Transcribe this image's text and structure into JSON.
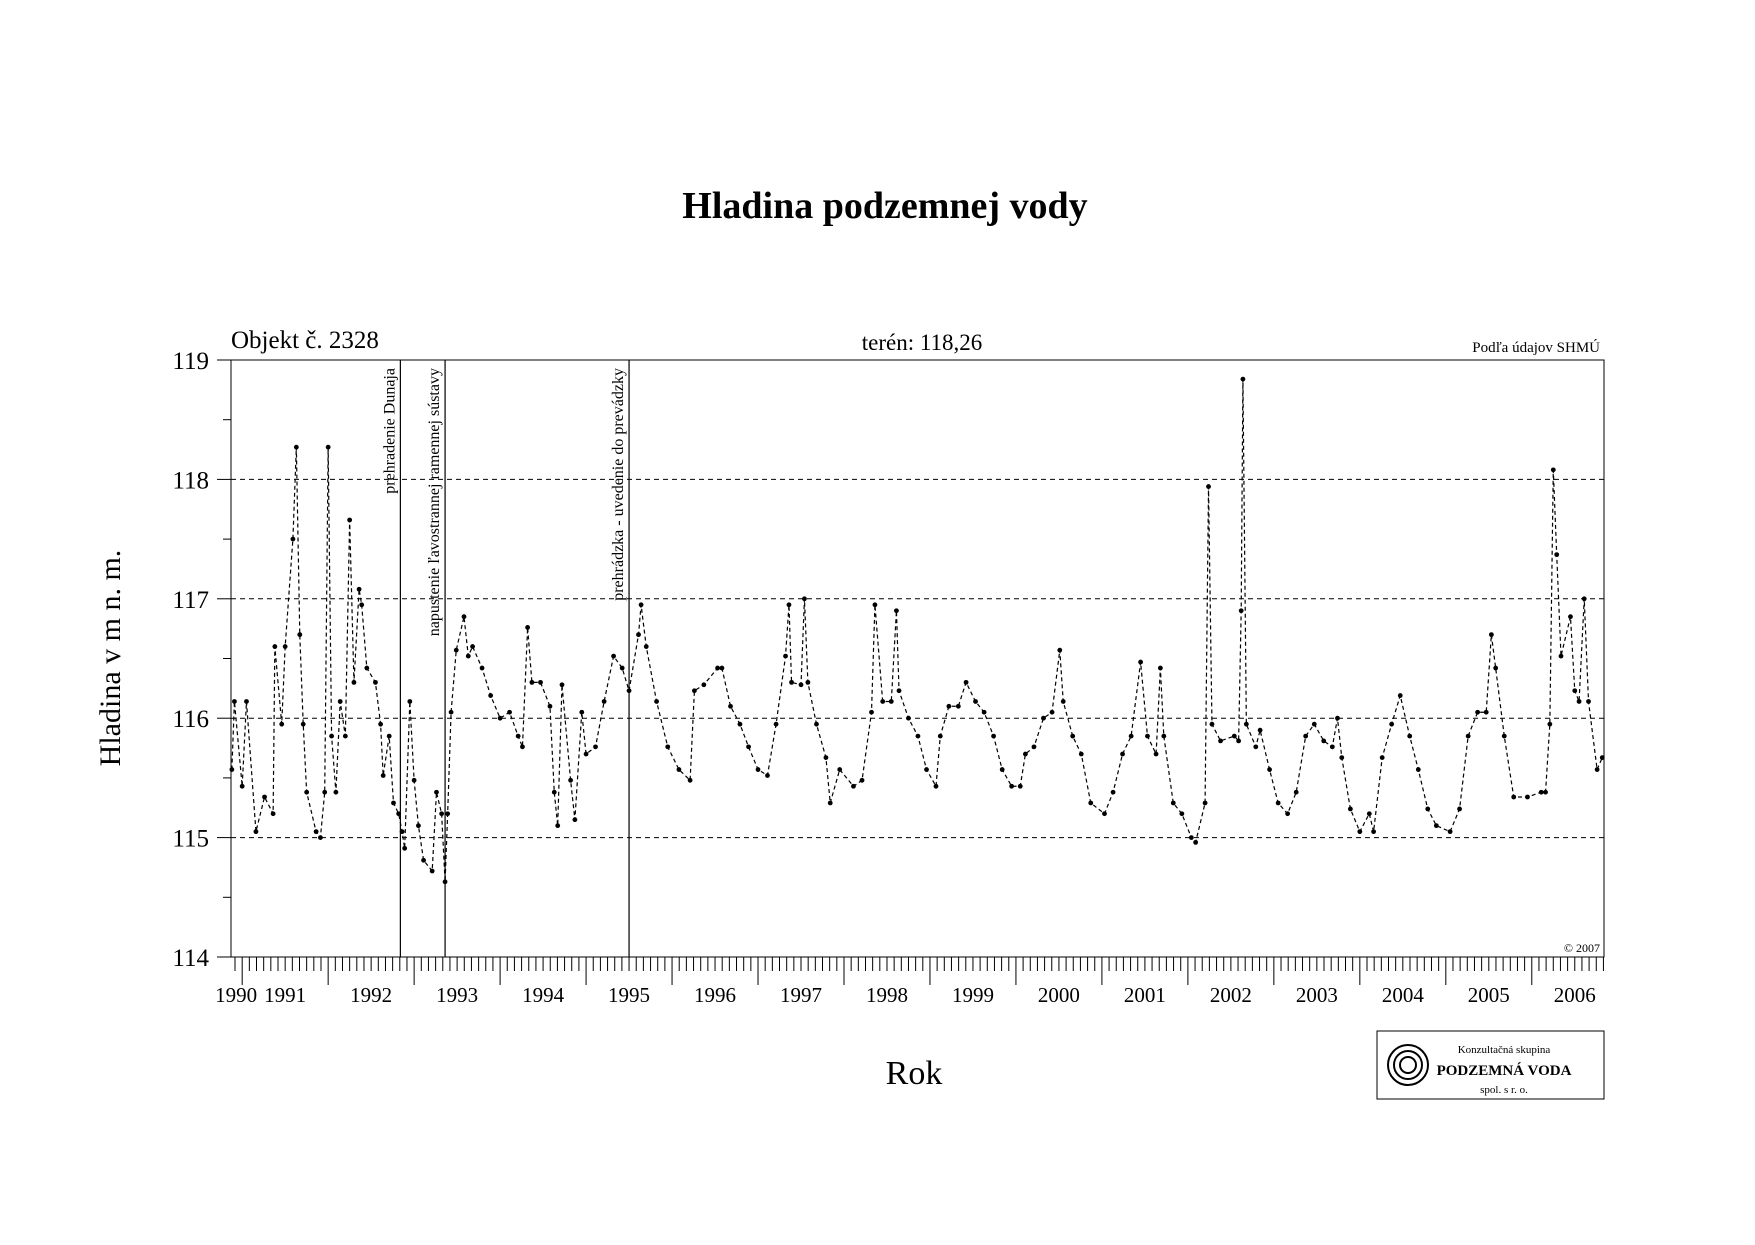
{
  "chart_data": {
    "type": "line",
    "title": "Hladina podzemnej vody",
    "subtitle_left": "Objekt č. 2328",
    "subtitle_center": "terén: 118,26",
    "source": "Podľa údajov SHMÚ",
    "copyright": "© 2007",
    "xlabel": "Rok",
    "ylabel": "Hladina v m n. m.",
    "logo": {
      "line1": "Konzultačná skupina",
      "line2": "PODZEMNÁ VODA",
      "line3": "spol. s r. o."
    },
    "color": "#000000",
    "grid": true,
    "xlim": [
      1990.87,
      2006.84
    ],
    "ylim": [
      114,
      119
    ],
    "yticks": [
      114,
      115,
      116,
      117,
      118,
      119
    ],
    "xticks": [
      {
        "value": 1990.93,
        "label": "1990"
      },
      {
        "value": 1991.5,
        "label": "1991"
      },
      {
        "value": 1992.5,
        "label": "1992"
      },
      {
        "value": 1993.5,
        "label": "1993"
      },
      {
        "value": 1994.5,
        "label": "1994"
      },
      {
        "value": 1995.5,
        "label": "1995"
      },
      {
        "value": 1996.5,
        "label": "1996"
      },
      {
        "value": 1997.5,
        "label": "1997"
      },
      {
        "value": 1998.5,
        "label": "1998"
      },
      {
        "value": 1999.5,
        "label": "1999"
      },
      {
        "value": 2000.5,
        "label": "2000"
      },
      {
        "value": 2001.5,
        "label": "2001"
      },
      {
        "value": 2002.5,
        "label": "2002"
      },
      {
        "value": 2003.5,
        "label": "2003"
      },
      {
        "value": 2004.5,
        "label": "2004"
      },
      {
        "value": 2005.5,
        "label": "2005"
      },
      {
        "value": 2006.5,
        "label": "2006"
      }
    ],
    "events": [
      {
        "x": 1992.84,
        "label": "prehradenie Dunaja"
      },
      {
        "x": 1993.36,
        "label": "napustenie ľavostrannej ramennej sústavy"
      },
      {
        "x": 1995.5,
        "label": "prehrádzka - uvedenie do prevádzky"
      }
    ],
    "x": [
      1990.88,
      1990.91,
      1991.0,
      1991.05,
      1991.16,
      1991.26,
      1991.36,
      1991.38,
      1991.46,
      1991.5,
      1991.59,
      1991.63,
      1991.67,
      1991.71,
      1991.75,
      1991.86,
      1991.91,
      1991.96,
      1992.0,
      1992.04,
      1992.09,
      1992.14,
      1992.2,
      1992.25,
      1992.3,
      1992.36,
      1992.39,
      1992.45,
      1992.55,
      1992.61,
      1992.64,
      1992.71,
      1992.76,
      1992.82,
      1992.86,
      1992.89,
      1992.95,
      1993.0,
      1993.05,
      1993.11,
      1993.21,
      1993.26,
      1993.32,
      1993.36,
      1993.39,
      1993.43,
      1993.49,
      1993.58,
      1993.63,
      1993.68,
      1993.79,
      1993.89,
      1994.0,
      1994.11,
      1994.21,
      1994.26,
      1994.32,
      1994.37,
      1994.47,
      1994.58,
      1994.63,
      1994.67,
      1994.72,
      1994.82,
      1994.87,
      1994.95,
      1995.0,
      1995.11,
      1995.21,
      1995.32,
      1995.42,
      1995.5,
      1995.61,
      1995.64,
      1995.7,
      1995.82,
      1995.95,
      1996.08,
      1996.21,
      1996.26,
      1996.37,
      1996.53,
      1996.58,
      1996.68,
      1996.79,
      1996.89,
      1997.0,
      1997.11,
      1997.21,
      1997.32,
      1997.36,
      1997.39,
      1997.5,
      1997.54,
      1997.58,
      1997.68,
      1997.79,
      1997.84,
      1997.95,
      1998.11,
      1998.21,
      1998.32,
      1998.36,
      1998.45,
      1998.55,
      1998.61,
      1998.64,
      1998.75,
      1998.86,
      1998.96,
      1999.07,
      1999.12,
      1999.22,
      1999.33,
      1999.42,
      1999.53,
      1999.63,
      1999.74,
      1999.84,
      1999.95,
      2000.05,
      2000.11,
      2000.21,
      2000.32,
      2000.42,
      2000.51,
      2000.55,
      2000.66,
      2000.76,
      2000.87,
      2001.03,
      2001.13,
      2001.24,
      2001.34,
      2001.45,
      2001.53,
      2001.63,
      2001.68,
      2001.72,
      2001.83,
      2001.93,
      2002.04,
      2002.09,
      2002.2,
      2002.24,
      2002.28,
      2002.38,
      2002.54,
      2002.59,
      2002.62,
      2002.64,
      2002.68,
      2002.79,
      2002.84,
      2002.95,
      2003.05,
      2003.16,
      2003.26,
      2003.37,
      2003.47,
      2003.58,
      2003.68,
      2003.74,
      2003.79,
      2003.89,
      2004.0,
      2004.11,
      2004.16,
      2004.26,
      2004.37,
      2004.47,
      2004.58,
      2004.68,
      2004.79,
      2004.89,
      2005.05,
      2005.16,
      2005.26,
      2005.37,
      2005.47,
      2005.53,
      2005.58,
      2005.68,
      2005.79,
      2005.95,
      2006.11,
      2006.16,
      2006.21,
      2006.25,
      2006.29,
      2006.34,
      2006.45,
      2006.5,
      2006.55,
      2006.61,
      2006.66,
      2006.76,
      2006.82
    ],
    "values": [
      115.57,
      116.14,
      115.43,
      116.14,
      115.05,
      115.34,
      115.2,
      116.6,
      115.95,
      116.6,
      117.5,
      118.27,
      116.7,
      115.95,
      115.38,
      115.05,
      115.0,
      115.38,
      118.27,
      115.85,
      115.38,
      116.14,
      115.85,
      117.66,
      116.3,
      117.08,
      116.95,
      116.42,
      116.3,
      115.95,
      115.52,
      115.85,
      115.29,
      115.2,
      115.05,
      114.91,
      116.14,
      115.48,
      115.1,
      114.81,
      114.72,
      115.38,
      115.2,
      114.63,
      115.2,
      116.05,
      116.57,
      116.85,
      116.52,
      116.6,
      116.42,
      116.19,
      116.0,
      116.05,
      115.85,
      115.76,
      116.76,
      116.3,
      116.3,
      116.1,
      115.38,
      115.1,
      116.28,
      115.48,
      115.15,
      116.05,
      115.7,
      115.76,
      116.14,
      116.52,
      116.42,
      116.23,
      116.7,
      116.95,
      116.6,
      116.14,
      115.76,
      115.57,
      115.48,
      116.23,
      116.28,
      116.42,
      116.42,
      116.1,
      115.95,
      115.76,
      115.57,
      115.52,
      115.95,
      116.52,
      116.95,
      116.3,
      116.28,
      117.0,
      116.3,
      115.95,
      115.67,
      115.29,
      115.57,
      115.43,
      115.48,
      116.05,
      116.95,
      116.14,
      116.14,
      116.9,
      116.23,
      116.0,
      115.85,
      115.57,
      115.43,
      115.85,
      116.1,
      116.1,
      116.3,
      116.14,
      116.05,
      115.85,
      115.57,
      115.43,
      115.43,
      115.7,
      115.76,
      116.0,
      116.05,
      116.57,
      116.14,
      115.85,
      115.7,
      115.29,
      115.2,
      115.38,
      115.7,
      115.85,
      116.47,
      115.85,
      115.7,
      116.42,
      115.85,
      115.29,
      115.2,
      115.0,
      114.96,
      115.29,
      117.94,
      115.95,
      115.81,
      115.85,
      115.81,
      116.9,
      118.84,
      115.95,
      115.76,
      115.9,
      115.57,
      115.29,
      115.2,
      115.38,
      115.85,
      115.95,
      115.81,
      115.76,
      116.0,
      115.67,
      115.24,
      115.05,
      115.2,
      115.05,
      115.67,
      115.95,
      116.19,
      115.85,
      115.57,
      115.24,
      115.1,
      115.05,
      115.24,
      115.85,
      116.05,
      116.05,
      116.7,
      116.42,
      115.85,
      115.34,
      115.34,
      115.38,
      115.38,
      115.95,
      118.08,
      117.37,
      116.52,
      116.85,
      116.23,
      116.14,
      117.0,
      116.14,
      115.57,
      115.67
    ]
  }
}
